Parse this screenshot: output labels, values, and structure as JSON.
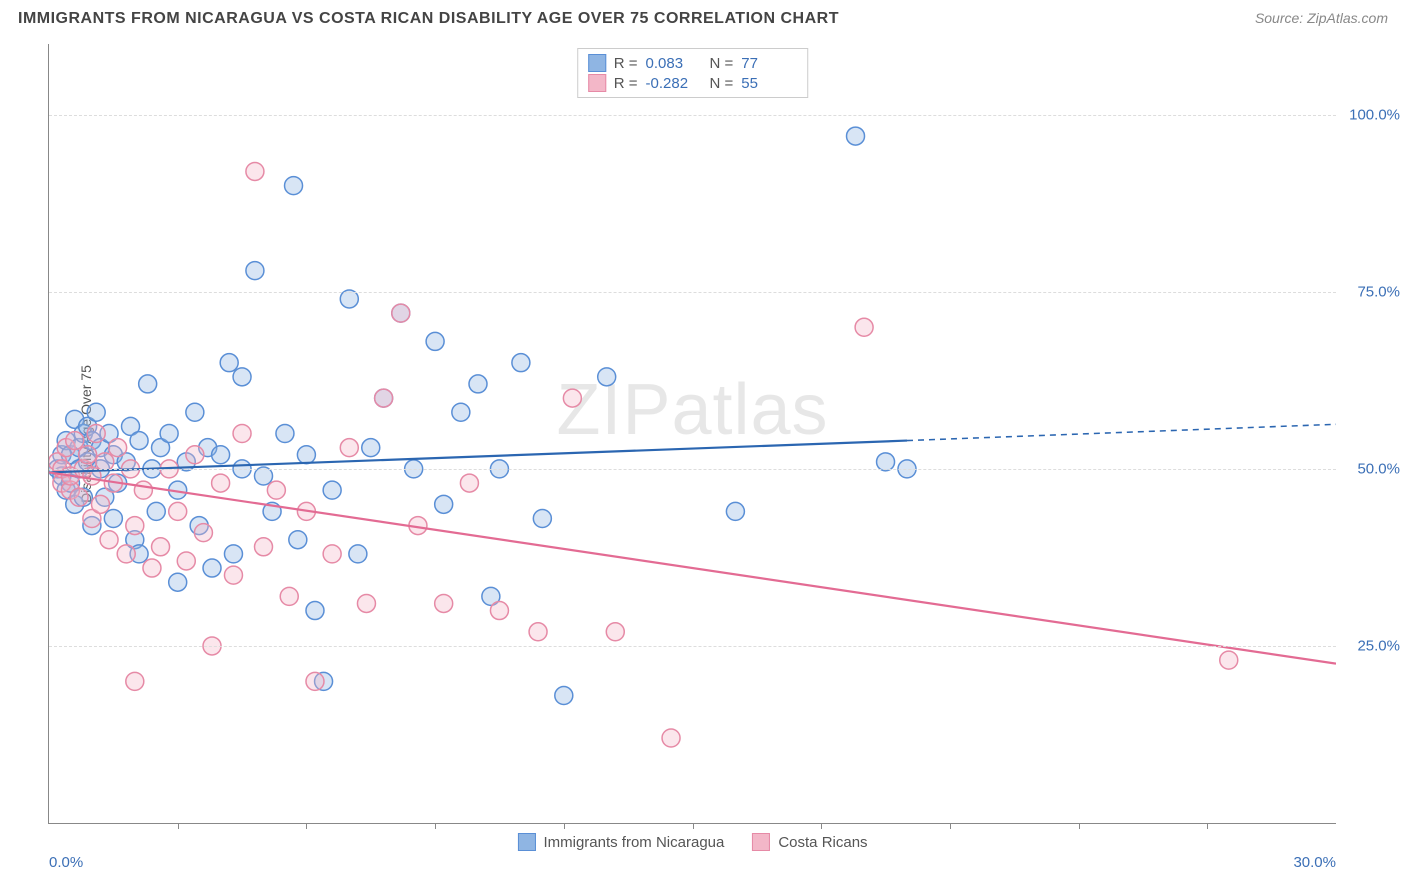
{
  "title": "IMMIGRANTS FROM NICARAGUA VS COSTA RICAN DISABILITY AGE OVER 75 CORRELATION CHART",
  "source_label": "Source: ",
  "source_name": "ZipAtlas.com",
  "watermark": "ZIPatlas",
  "chart": {
    "type": "scatter",
    "background_color": "#ffffff",
    "grid_color": "#dddddd",
    "axis_color": "#888888",
    "tick_label_color": "#3b6fb6",
    "tick_fontsize": 15,
    "title_fontsize": 16,
    "title_color": "#444444",
    "y_axis_title": "Disability Age Over 75",
    "y_axis_title_fontsize": 14,
    "xlim": [
      0,
      30
    ],
    "ylim": [
      0,
      110
    ],
    "y_ticks": [
      25,
      50,
      75,
      100
    ],
    "y_tick_labels": [
      "25.0%",
      "50.0%",
      "75.0%",
      "100.0%"
    ],
    "x_major_ticks": [
      0,
      30
    ],
    "x_tick_labels": [
      "0.0%",
      "30.0%"
    ],
    "x_minor_ticks": [
      3,
      6,
      9,
      12,
      15,
      18,
      21,
      24,
      27
    ],
    "marker_radius": 9,
    "marker_fill_opacity": 0.35,
    "marker_stroke_width": 1.5,
    "line_width": 2.2,
    "series": [
      {
        "name": "Immigrants from Nicaragua",
        "color_fill": "#8fb5e3",
        "color_stroke": "#5a8fd6",
        "line_color": "#2b66b1",
        "R": "0.083",
        "N": "77",
        "trend": {
          "x1": 0,
          "y1": 49.5,
          "x2": 20,
          "y2": 54.0,
          "x_extend": 30,
          "y_extend": 56.3
        },
        "points": [
          [
            0.2,
            50
          ],
          [
            0.3,
            49
          ],
          [
            0.3,
            52
          ],
          [
            0.4,
            47
          ],
          [
            0.4,
            54
          ],
          [
            0.5,
            52
          ],
          [
            0.5,
            48
          ],
          [
            0.6,
            57
          ],
          [
            0.6,
            45
          ],
          [
            0.7,
            50
          ],
          [
            0.7,
            53
          ],
          [
            0.8,
            55
          ],
          [
            0.8,
            46
          ],
          [
            0.9,
            51
          ],
          [
            0.9,
            56
          ],
          [
            1.0,
            54
          ],
          [
            1.0,
            42
          ],
          [
            1.1,
            58
          ],
          [
            1.2,
            50
          ],
          [
            1.2,
            53
          ],
          [
            1.3,
            46
          ],
          [
            1.4,
            55
          ],
          [
            1.5,
            52
          ],
          [
            1.5,
            43
          ],
          [
            1.6,
            48
          ],
          [
            1.8,
            51
          ],
          [
            1.9,
            56
          ],
          [
            2.0,
            40
          ],
          [
            2.1,
            54
          ],
          [
            2.1,
            38
          ],
          [
            2.3,
            62
          ],
          [
            2.4,
            50
          ],
          [
            2.5,
            44
          ],
          [
            2.6,
            53
          ],
          [
            2.8,
            55
          ],
          [
            3.0,
            47
          ],
          [
            3.0,
            34
          ],
          [
            3.2,
            51
          ],
          [
            3.4,
            58
          ],
          [
            3.5,
            42
          ],
          [
            3.7,
            53
          ],
          [
            3.8,
            36
          ],
          [
            4.0,
            52
          ],
          [
            4.2,
            65
          ],
          [
            4.3,
            38
          ],
          [
            4.5,
            50
          ],
          [
            4.5,
            63
          ],
          [
            4.8,
            78
          ],
          [
            5.0,
            49
          ],
          [
            5.2,
            44
          ],
          [
            5.5,
            55
          ],
          [
            5.7,
            90
          ],
          [
            5.8,
            40
          ],
          [
            6.0,
            52
          ],
          [
            6.2,
            30
          ],
          [
            6.4,
            20
          ],
          [
            6.6,
            47
          ],
          [
            7.0,
            74
          ],
          [
            7.2,
            38
          ],
          [
            7.5,
            53
          ],
          [
            7.8,
            60
          ],
          [
            8.2,
            72
          ],
          [
            8.5,
            50
          ],
          [
            9.0,
            68
          ],
          [
            9.2,
            45
          ],
          [
            9.6,
            58
          ],
          [
            10.0,
            62
          ],
          [
            10.3,
            32
          ],
          [
            10.5,
            50
          ],
          [
            11.0,
            65
          ],
          [
            11.5,
            43
          ],
          [
            12.0,
            18
          ],
          [
            13.0,
            63
          ],
          [
            16.0,
            44
          ],
          [
            18.8,
            97
          ],
          [
            19.5,
            51
          ],
          [
            20.0,
            50
          ]
        ]
      },
      {
        "name": "Costa Ricans",
        "color_fill": "#f3b7c8",
        "color_stroke": "#e68aa6",
        "line_color": "#e36b93",
        "R": "-0.282",
        "N": "55",
        "trend": {
          "x1": 0,
          "y1": 49.5,
          "x2": 30,
          "y2": 22.5,
          "x_extend": 30,
          "y_extend": 22.5
        },
        "points": [
          [
            0.2,
            51
          ],
          [
            0.3,
            48
          ],
          [
            0.3,
            50
          ],
          [
            0.4,
            53
          ],
          [
            0.5,
            47
          ],
          [
            0.5,
            49
          ],
          [
            0.6,
            54
          ],
          [
            0.7,
            46
          ],
          [
            0.8,
            50
          ],
          [
            0.9,
            52
          ],
          [
            1.0,
            43
          ],
          [
            1.0,
            49
          ],
          [
            1.1,
            55
          ],
          [
            1.2,
            45
          ],
          [
            1.3,
            51
          ],
          [
            1.4,
            40
          ],
          [
            1.5,
            48
          ],
          [
            1.6,
            53
          ],
          [
            1.8,
            38
          ],
          [
            1.9,
            50
          ],
          [
            2.0,
            42
          ],
          [
            2.0,
            20
          ],
          [
            2.2,
            47
          ],
          [
            2.4,
            36
          ],
          [
            2.6,
            39
          ],
          [
            2.8,
            50
          ],
          [
            3.0,
            44
          ],
          [
            3.2,
            37
          ],
          [
            3.4,
            52
          ],
          [
            3.6,
            41
          ],
          [
            3.8,
            25
          ],
          [
            4.0,
            48
          ],
          [
            4.3,
            35
          ],
          [
            4.5,
            55
          ],
          [
            4.8,
            92
          ],
          [
            5.0,
            39
          ],
          [
            5.3,
            47
          ],
          [
            5.6,
            32
          ],
          [
            6.0,
            44
          ],
          [
            6.2,
            20
          ],
          [
            6.6,
            38
          ],
          [
            7.0,
            53
          ],
          [
            7.4,
            31
          ],
          [
            7.8,
            60
          ],
          [
            8.2,
            72
          ],
          [
            8.6,
            42
          ],
          [
            9.2,
            31
          ],
          [
            9.8,
            48
          ],
          [
            10.5,
            30
          ],
          [
            11.4,
            27
          ],
          [
            12.2,
            60
          ],
          [
            13.2,
            27
          ],
          [
            14.5,
            12
          ],
          [
            19.0,
            70
          ],
          [
            27.5,
            23
          ]
        ]
      }
    ],
    "bottom_legend": [
      {
        "label": "Immigrants from Nicaragua",
        "fill": "#8fb5e3",
        "stroke": "#5a8fd6"
      },
      {
        "label": "Costa Ricans",
        "fill": "#f3b7c8",
        "stroke": "#e68aa6"
      }
    ]
  }
}
